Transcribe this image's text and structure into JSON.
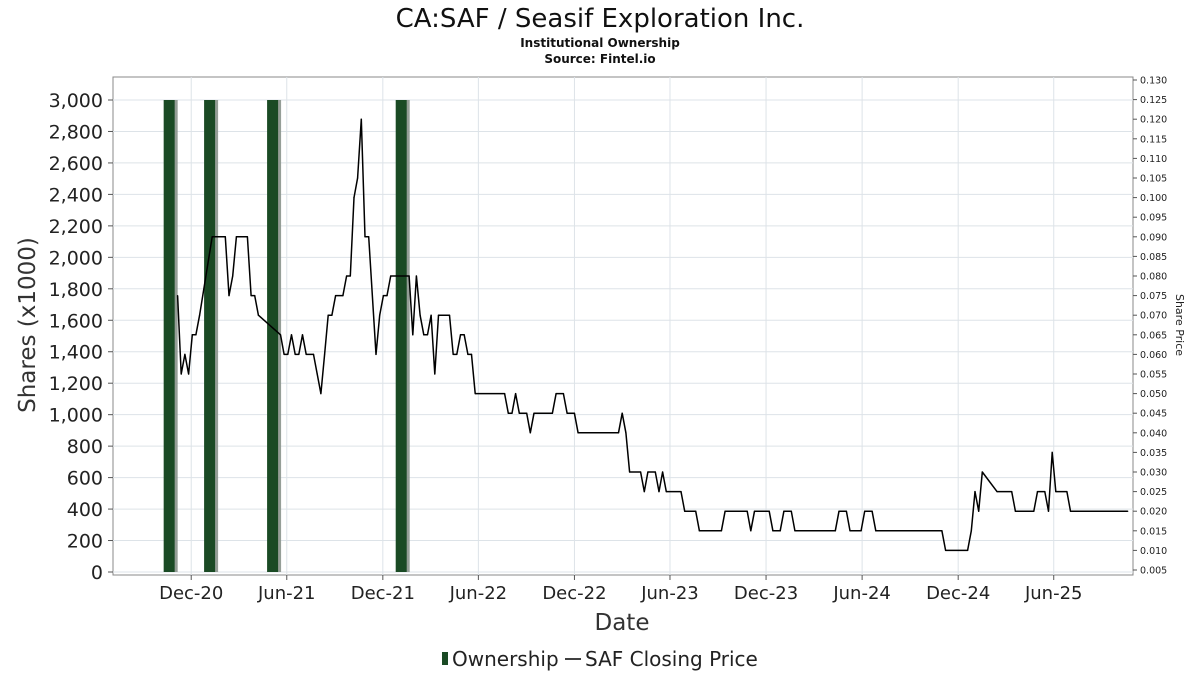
{
  "chart_data": {
    "type": "bar+line",
    "title": "CA:SAF / Seasif Exploration Inc.",
    "subtitle_1": "Institutional Ownership",
    "subtitle_2": "Source: Fintel.io",
    "xlabel": "Date",
    "ylabel": "Shares (x1000)",
    "y2label": "Share Price",
    "grid": true,
    "legend_position": "bottom-center",
    "x_range": [
      "2020-07-05",
      "2025-10-30"
    ],
    "ylim": [
      0,
      3000
    ],
    "y2lim": [
      0.005,
      0.13
    ],
    "x_ticks": [
      {
        "date": "2020-12-01",
        "label": "Dec-20"
      },
      {
        "date": "2021-06-01",
        "label": "Jun-21"
      },
      {
        "date": "2021-12-01",
        "label": "Dec-21"
      },
      {
        "date": "2022-06-01",
        "label": "Jun-22"
      },
      {
        "date": "2022-12-01",
        "label": "Dec-22"
      },
      {
        "date": "2023-06-01",
        "label": "Jun-23"
      },
      {
        "date": "2023-12-01",
        "label": "Dec-23"
      },
      {
        "date": "2024-06-01",
        "label": "Jun-24"
      },
      {
        "date": "2024-12-01",
        "label": "Dec-24"
      },
      {
        "date": "2025-06-01",
        "label": "Jun-25"
      }
    ],
    "y_ticks": [
      0,
      200,
      400,
      600,
      800,
      1000,
      1200,
      1400,
      1600,
      1800,
      2000,
      2200,
      2400,
      2600,
      2800,
      3000
    ],
    "y_tick_labels": [
      "0",
      "200",
      "400",
      "600",
      "800",
      "1,000",
      "1,200",
      "1,400",
      "1,600",
      "1,800",
      "2,000",
      "2,200",
      "2,400",
      "2,600",
      "2,800",
      "3,000"
    ],
    "y2_ticks": [
      0.005,
      0.01,
      0.015,
      0.02,
      0.025,
      0.03,
      0.035,
      0.04,
      0.045,
      0.05,
      0.055,
      0.06,
      0.065,
      0.07,
      0.075,
      0.08,
      0.085,
      0.09,
      0.095,
      0.1,
      0.105,
      0.11,
      0.115,
      0.12,
      0.125,
      0.13
    ],
    "y2_tick_labels": [
      "0.005",
      "0.010",
      "0.015",
      "0.020",
      "0.025",
      "0.030",
      "0.035",
      "0.040",
      "0.045",
      "0.050",
      "0.055",
      "0.060",
      "0.065",
      "0.070",
      "0.075",
      "0.080",
      "0.085",
      "0.090",
      "0.095",
      "0.100",
      "0.105",
      "0.110",
      "0.115",
      "0.120",
      "0.125",
      "0.130"
    ],
    "series": [
      {
        "name": "Ownership",
        "kind": "bar",
        "axis": "left",
        "color": "#1a4a24",
        "points": [
          {
            "date": "2020-10-20",
            "value": 3000
          },
          {
            "date": "2021-01-05",
            "value": 3000
          },
          {
            "date": "2021-05-05",
            "value": 3000
          },
          {
            "date": "2022-01-05",
            "value": 3000
          }
        ]
      },
      {
        "name": "SAF Closing Price",
        "kind": "line",
        "axis": "right",
        "color": "#000000",
        "points": [
          {
            "date": "2020-11-05",
            "value": 0.075
          },
          {
            "date": "2020-11-12",
            "value": 0.055
          },
          {
            "date": "2020-11-19",
            "value": 0.06
          },
          {
            "date": "2020-11-26",
            "value": 0.055
          },
          {
            "date": "2020-12-03",
            "value": 0.065
          },
          {
            "date": "2020-12-10",
            "value": 0.065
          },
          {
            "date": "2020-12-17",
            "value": 0.07
          },
          {
            "date": "2021-01-10",
            "value": 0.09
          },
          {
            "date": "2021-01-28",
            "value": 0.09
          },
          {
            "date": "2021-02-04",
            "value": 0.09
          },
          {
            "date": "2021-02-11",
            "value": 0.075
          },
          {
            "date": "2021-02-18",
            "value": 0.08
          },
          {
            "date": "2021-02-25",
            "value": 0.09
          },
          {
            "date": "2021-03-18",
            "value": 0.09
          },
          {
            "date": "2021-03-25",
            "value": 0.075
          },
          {
            "date": "2021-04-01",
            "value": 0.075
          },
          {
            "date": "2021-04-08",
            "value": 0.07
          },
          {
            "date": "2021-05-20",
            "value": 0.065
          },
          {
            "date": "2021-05-27",
            "value": 0.06
          },
          {
            "date": "2021-06-03",
            "value": 0.06
          },
          {
            "date": "2021-06-10",
            "value": 0.065
          },
          {
            "date": "2021-06-17",
            "value": 0.06
          },
          {
            "date": "2021-06-24",
            "value": 0.06
          },
          {
            "date": "2021-07-01",
            "value": 0.065
          },
          {
            "date": "2021-07-08",
            "value": 0.06
          },
          {
            "date": "2021-07-22",
            "value": 0.06
          },
          {
            "date": "2021-07-29",
            "value": 0.055
          },
          {
            "date": "2021-08-05",
            "value": 0.05
          },
          {
            "date": "2021-08-12",
            "value": 0.06
          },
          {
            "date": "2021-08-19",
            "value": 0.07
          },
          {
            "date": "2021-08-26",
            "value": 0.07
          },
          {
            "date": "2021-09-02",
            "value": 0.075
          },
          {
            "date": "2021-09-16",
            "value": 0.075
          },
          {
            "date": "2021-09-23",
            "value": 0.08
          },
          {
            "date": "2021-09-30",
            "value": 0.08
          },
          {
            "date": "2021-10-07",
            "value": 0.1
          },
          {
            "date": "2021-10-14",
            "value": 0.105
          },
          {
            "date": "2021-10-21",
            "value": 0.12
          },
          {
            "date": "2021-10-28",
            "value": 0.09
          },
          {
            "date": "2021-11-04",
            "value": 0.09
          },
          {
            "date": "2021-11-18",
            "value": 0.06
          },
          {
            "date": "2021-11-25",
            "value": 0.07
          },
          {
            "date": "2021-12-02",
            "value": 0.075
          },
          {
            "date": "2021-12-09",
            "value": 0.075
          },
          {
            "date": "2021-12-16",
            "value": 0.08
          },
          {
            "date": "2022-01-20",
            "value": 0.08
          },
          {
            "date": "2022-01-27",
            "value": 0.065
          },
          {
            "date": "2022-02-03",
            "value": 0.08
          },
          {
            "date": "2022-02-10",
            "value": 0.07
          },
          {
            "date": "2022-02-17",
            "value": 0.065
          },
          {
            "date": "2022-02-24",
            "value": 0.065
          },
          {
            "date": "2022-03-03",
            "value": 0.07
          },
          {
            "date": "2022-03-10",
            "value": 0.055
          },
          {
            "date": "2022-03-17",
            "value": 0.07
          },
          {
            "date": "2022-04-07",
            "value": 0.07
          },
          {
            "date": "2022-04-14",
            "value": 0.06
          },
          {
            "date": "2022-04-21",
            "value": 0.06
          },
          {
            "date": "2022-04-28",
            "value": 0.065
          },
          {
            "date": "2022-05-05",
            "value": 0.065
          },
          {
            "date": "2022-05-12",
            "value": 0.06
          },
          {
            "date": "2022-05-19",
            "value": 0.06
          },
          {
            "date": "2022-05-26",
            "value": 0.05
          },
          {
            "date": "2022-07-21",
            "value": 0.05
          },
          {
            "date": "2022-07-28",
            "value": 0.045
          },
          {
            "date": "2022-08-04",
            "value": 0.045
          },
          {
            "date": "2022-08-11",
            "value": 0.05
          },
          {
            "date": "2022-08-18",
            "value": 0.045
          },
          {
            "date": "2022-09-01",
            "value": 0.045
          },
          {
            "date": "2022-09-08",
            "value": 0.04
          },
          {
            "date": "2022-09-15",
            "value": 0.045
          },
          {
            "date": "2022-10-20",
            "value": 0.045
          },
          {
            "date": "2022-10-27",
            "value": 0.05
          },
          {
            "date": "2022-11-10",
            "value": 0.05
          },
          {
            "date": "2022-11-17",
            "value": 0.045
          },
          {
            "date": "2022-12-01",
            "value": 0.045
          },
          {
            "date": "2022-12-08",
            "value": 0.04
          },
          {
            "date": "2023-02-23",
            "value": 0.04
          },
          {
            "date": "2023-03-02",
            "value": 0.045
          },
          {
            "date": "2023-03-09",
            "value": 0.04
          },
          {
            "date": "2023-03-16",
            "value": 0.03
          },
          {
            "date": "2023-04-06",
            "value": 0.03
          },
          {
            "date": "2023-04-13",
            "value": 0.025
          },
          {
            "date": "2023-04-20",
            "value": 0.03
          },
          {
            "date": "2023-05-04",
            "value": 0.03
          },
          {
            "date": "2023-05-11",
            "value": 0.025
          },
          {
            "date": "2023-05-18",
            "value": 0.03
          },
          {
            "date": "2023-05-25",
            "value": 0.025
          },
          {
            "date": "2023-06-22",
            "value": 0.025
          },
          {
            "date": "2023-06-29",
            "value": 0.02
          },
          {
            "date": "2023-07-20",
            "value": 0.02
          },
          {
            "date": "2023-07-27",
            "value": 0.015
          },
          {
            "date": "2023-09-07",
            "value": 0.015
          },
          {
            "date": "2023-09-14",
            "value": 0.02
          },
          {
            "date": "2023-10-26",
            "value": 0.02
          },
          {
            "date": "2023-11-02",
            "value": 0.015
          },
          {
            "date": "2023-11-09",
            "value": 0.02
          },
          {
            "date": "2023-12-07",
            "value": 0.02
          },
          {
            "date": "2023-12-14",
            "value": 0.015
          },
          {
            "date": "2023-12-28",
            "value": 0.015
          },
          {
            "date": "2024-01-04",
            "value": 0.02
          },
          {
            "date": "2024-01-18",
            "value": 0.02
          },
          {
            "date": "2024-01-25",
            "value": 0.015
          },
          {
            "date": "2024-04-11",
            "value": 0.015
          },
          {
            "date": "2024-04-18",
            "value": 0.02
          },
          {
            "date": "2024-05-02",
            "value": 0.02
          },
          {
            "date": "2024-05-09",
            "value": 0.015
          },
          {
            "date": "2024-05-30",
            "value": 0.015
          },
          {
            "date": "2024-06-06",
            "value": 0.02
          },
          {
            "date": "2024-06-20",
            "value": 0.02
          },
          {
            "date": "2024-06-27",
            "value": 0.015
          },
          {
            "date": "2024-10-31",
            "value": 0.015
          },
          {
            "date": "2024-11-07",
            "value": 0.01
          },
          {
            "date": "2024-12-19",
            "value": 0.01
          },
          {
            "date": "2024-12-26",
            "value": 0.015
          },
          {
            "date": "2025-01-02",
            "value": 0.025
          },
          {
            "date": "2025-01-09",
            "value": 0.02
          },
          {
            "date": "2025-01-16",
            "value": 0.03
          },
          {
            "date": "2025-02-13",
            "value": 0.025
          },
          {
            "date": "2025-03-13",
            "value": 0.025
          },
          {
            "date": "2025-03-20",
            "value": 0.02
          },
          {
            "date": "2025-04-24",
            "value": 0.02
          },
          {
            "date": "2025-05-01",
            "value": 0.025
          },
          {
            "date": "2025-05-15",
            "value": 0.025
          },
          {
            "date": "2025-05-22",
            "value": 0.02
          },
          {
            "date": "2025-05-29",
            "value": 0.035
          },
          {
            "date": "2025-06-05",
            "value": 0.025
          },
          {
            "date": "2025-06-26",
            "value": 0.025
          },
          {
            "date": "2025-07-03",
            "value": 0.02
          },
          {
            "date": "2025-10-20",
            "value": 0.02
          }
        ]
      }
    ]
  }
}
